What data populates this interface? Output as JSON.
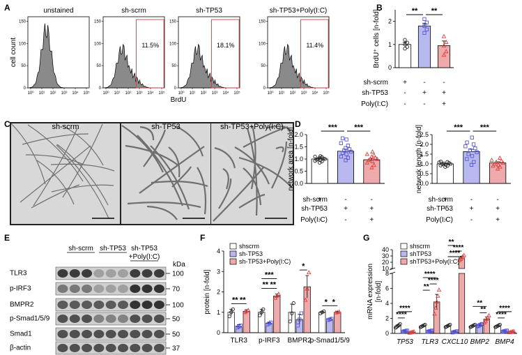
{
  "panel_letters": {
    "A": "A",
    "B": "B",
    "C": "C",
    "D": "D",
    "E": "E",
    "F": "F",
    "G": "G"
  },
  "panel_a": {
    "x_axis_label": "BrdU",
    "y_axis_label": "cell count",
    "x_ticks": [
      "10⁰",
      "10¹",
      "10²",
      "10³",
      "10⁴",
      "10⁵"
    ],
    "y_ticks": [
      "0",
      "50",
      "100",
      "150"
    ],
    "histograms": [
      {
        "title": "unstained",
        "gate": ""
      },
      {
        "title": "sh-scrm",
        "gate": "11.5%"
      },
      {
        "title": "sh-TP53",
        "gate": "18.1%"
      },
      {
        "title": "sh-TP53+Poly(I:C)",
        "gate": "11.4%"
      }
    ]
  },
  "condition_table": {
    "rows": [
      {
        "label": "sh-scrm",
        "marks": [
          "+",
          "-",
          "-"
        ]
      },
      {
        "label": "sh-TP53",
        "marks": [
          "-",
          "+",
          "+"
        ]
      },
      {
        "label": "Poly(I:C)",
        "marks": [
          "-",
          "-",
          "+"
        ]
      }
    ]
  },
  "panel_c": {
    "titles": [
      "sh-scrm",
      "sh-TP53",
      "sh-TP53+Poly(I:C)"
    ]
  },
  "panel_e": {
    "groups": [
      "sh-scrm",
      "sh-TP53",
      "sh-TP53\n+Poly(I:C)"
    ],
    "group_line1": [
      "sh-scrm",
      "sh-TP53",
      "sh-TP53"
    ],
    "group_line2": [
      "",
      "",
      "+Poly(I:C)"
    ],
    "kda_label": "kDa",
    "bands": [
      {
        "name": "TLR3",
        "kda": "100"
      },
      {
        "name": "p-IRF3",
        "kda": "70"
      },
      {
        "name": "BMPR2",
        "kda": "100"
      },
      {
        "name": "p-Smad1/5/9",
        "kda": "50"
      },
      {
        "name": "Smad1",
        "kda": "50"
      },
      {
        "name": "β-actin",
        "kda": "37"
      }
    ]
  },
  "colors": {
    "scrm": "#ffffff",
    "tp53": "#b9b8ee",
    "polyic": "#eeaaaa",
    "tp53_marker": "#5555dd",
    "polyic_marker": "#dd4444"
  },
  "chart_data": [
    {
      "panel": "B",
      "type": "bar",
      "ylabel": "BrdU⁺ cells [n-fold]",
      "ylim": [
        0,
        2.5
      ],
      "yticks": [
        "0",
        "1",
        "2"
      ],
      "ytick_values": [
        0,
        1,
        2
      ],
      "categories": [
        "sh-scrm",
        "sh-TP53",
        "sh-TP53+Poly(I:C)"
      ],
      "values": [
        1.0,
        1.8,
        0.95
      ],
      "errors": [
        0.1,
        0.12,
        0.2
      ],
      "points": [
        [
          0.82,
          0.9,
          1.0,
          1.08,
          1.2
        ],
        [
          1.5,
          1.65,
          1.8,
          1.95,
          2.1
        ],
        [
          0.55,
          0.7,
          0.95,
          1.1,
          1.35
        ]
      ],
      "significance": [
        {
          "from": 0,
          "to": 1,
          "label": "**"
        },
        {
          "from": 1,
          "to": 2,
          "label": "**"
        }
      ]
    },
    {
      "panel": "D-left",
      "type": "bar",
      "ylabel": "network area [n-fold]",
      "ylim": [
        0,
        2.0
      ],
      "yticks": [
        "0.0",
        "0.5",
        "1.0",
        "1.5",
        "2.0"
      ],
      "ytick_values": [
        0,
        0.5,
        1,
        1.5,
        2
      ],
      "categories": [
        "sh-scrm",
        "sh-TP53",
        "sh-TP53+Poly(I:C)"
      ],
      "values": [
        1.0,
        1.32,
        0.97
      ],
      "errors": [
        0.03,
        0.08,
        0.06
      ],
      "points": [
        [
          0.85,
          0.9,
          0.92,
          0.95,
          0.97,
          1.0,
          1.0,
          1.02,
          1.05,
          1.08,
          1.1,
          1.12
        ],
        [
          0.95,
          1.05,
          1.1,
          1.2,
          1.25,
          1.3,
          1.35,
          1.4,
          1.45,
          1.55,
          1.65,
          1.8,
          1.85
        ],
        [
          0.65,
          0.75,
          0.85,
          0.9,
          0.95,
          1.0,
          1.0,
          1.05,
          1.1,
          1.15,
          1.2,
          1.3
        ]
      ],
      "significance": [
        {
          "from": 0,
          "to": 1,
          "label": "***"
        },
        {
          "from": 1,
          "to": 2,
          "label": "***"
        }
      ]
    },
    {
      "panel": "D-right",
      "type": "bar",
      "ylabel": "network length [n-fold]",
      "ylim": [
        0,
        2.5
      ],
      "yticks": [
        "0.0",
        "0.5",
        "1.0",
        "1.5",
        "2.0",
        "2.5"
      ],
      "ytick_values": [
        0,
        0.5,
        1,
        1.5,
        2,
        2.5
      ],
      "categories": [
        "sh-scrm",
        "sh-TP53",
        "sh-TP53+Poly(I:C)"
      ],
      "values": [
        1.0,
        1.63,
        1.05
      ],
      "errors": [
        0.03,
        0.12,
        0.06
      ],
      "points": [
        [
          0.85,
          0.9,
          0.92,
          0.95,
          0.98,
          1.0,
          1.02,
          1.05,
          1.08,
          1.1,
          1.12
        ],
        [
          0.95,
          1.1,
          1.25,
          1.4,
          1.5,
          1.6,
          1.7,
          1.8,
          1.9,
          2.0,
          2.1,
          2.35
        ],
        [
          0.75,
          0.85,
          0.9,
          0.95,
          1.0,
          1.05,
          1.1,
          1.15,
          1.2,
          1.3
        ]
      ],
      "significance": [
        {
          "from": 0,
          "to": 1,
          "label": "***"
        },
        {
          "from": 1,
          "to": 2,
          "label": "***"
        }
      ]
    },
    {
      "panel": "F",
      "type": "bar",
      "ylabel": "protein [n-fold]",
      "ylim": [
        0,
        4
      ],
      "yticks": [
        "0",
        "1",
        "2",
        "3",
        "4"
      ],
      "ytick_values": [
        0,
        1,
        2,
        3,
        4
      ],
      "legend": [
        "shscrm",
        "sh-TP53",
        "sh-TP53+Poly(I:C)"
      ],
      "categories": [
        "TLR3",
        "p-IRF3",
        "BMPR2",
        "p-Smad1/5/9"
      ],
      "series": [
        {
          "name": "shscrm",
          "values": [
            1.0,
            1.0,
            1.0,
            1.0
          ],
          "errors": [
            0.15,
            0.15,
            0.4,
            0.05
          ]
        },
        {
          "name": "sh-TP53",
          "values": [
            0.3,
            0.45,
            0.65,
            0.65
          ],
          "errors": [
            0.1,
            0.05,
            0.25,
            0.05
          ]
        },
        {
          "name": "sh-TP53+Poly(I:C)",
          "values": [
            1.05,
            1.8,
            2.25,
            1.0
          ],
          "errors": [
            0.08,
            0.1,
            0.55,
            0.05
          ]
        }
      ],
      "points": [
        [
          [
            0.8,
            1.0,
            1.15
          ],
          [
            0.25,
            0.3,
            0.35
          ],
          [
            1.0,
            1.05,
            1.1
          ]
        ],
        [
          [
            0.85,
            1.0,
            1.15
          ],
          [
            0.4,
            0.45,
            0.5
          ],
          [
            1.7,
            1.8,
            1.9
          ]
        ],
        [
          [
            0.55,
            0.95,
            1.45
          ],
          [
            0.35,
            0.65,
            0.95
          ],
          [
            1.6,
            2.15,
            2.95
          ]
        ],
        [
          [
            0.95,
            1.0,
            1.05
          ],
          [
            0.62,
            0.65,
            0.68
          ],
          [
            0.98,
            1.0,
            1.02
          ]
        ]
      ],
      "significance": [
        {
          "cat": 0,
          "from": 0,
          "to": 1,
          "label": "**"
        },
        {
          "cat": 0,
          "from": 1,
          "to": 2,
          "label": "**"
        },
        {
          "cat": 1,
          "from": 0,
          "to": 1,
          "label": "**"
        },
        {
          "cat": 1,
          "from": 1,
          "to": 2,
          "label": "**"
        },
        {
          "cat": 1,
          "from": 0,
          "to": 2,
          "label": "***"
        },
        {
          "cat": 2,
          "from": 1,
          "to": 2,
          "label": "*"
        },
        {
          "cat": 3,
          "from": 0,
          "to": 1,
          "label": "*"
        },
        {
          "cat": 3,
          "from": 1,
          "to": 2,
          "label": "*"
        }
      ]
    },
    {
      "panel": "G",
      "type": "bar",
      "ylabel": "mRNA expression [n-fold]",
      "ylabel_line1": "mRNA expression",
      "ylabel_line2": "[n-fold]",
      "axis_break": true,
      "ylim_lower": [
        0,
        8
      ],
      "ylim_upper": [
        10,
        40
      ],
      "yticks_lower": [
        "0",
        "2",
        "4",
        "6",
        "8"
      ],
      "ytick_values_lower": [
        0,
        2,
        4,
        6,
        8
      ],
      "yticks_upper": [
        "10",
        "20",
        "30",
        "40"
      ],
      "ytick_values_upper": [
        10,
        20,
        30,
        40
      ],
      "legend": [
        "shscrm",
        "shTP53",
        "shTP53+Poly(I:C)"
      ],
      "categories": [
        "TP53",
        "TLR3",
        "CXCL10",
        "BMP2",
        "BMP4"
      ],
      "series": [
        {
          "name": "shscrm",
          "values": [
            1.0,
            1.0,
            1.0,
            1.0,
            1.0
          ],
          "errors": [
            0.15,
            0.1,
            0.1,
            0.1,
            0.1
          ]
        },
        {
          "name": "shTP53",
          "values": [
            0.3,
            0.3,
            0.2,
            1.1,
            0.3
          ],
          "errors": [
            0.05,
            0.05,
            0.05,
            0.1,
            0.05
          ]
        },
        {
          "name": "shTP53+Poly(I:C)",
          "values": [
            0.15,
            4.2,
            27.0,
            1.9,
            0.2
          ],
          "errors": [
            0.05,
            1.0,
            2.5,
            0.3,
            0.05
          ]
        }
      ],
      "significance": [
        {
          "cat": 0,
          "from": 0,
          "to": 1,
          "label": "****"
        },
        {
          "cat": 0,
          "from": 0,
          "to": 2,
          "label": "****"
        },
        {
          "cat": 1,
          "from": 0,
          "to": 1,
          "label": "**"
        },
        {
          "cat": 1,
          "from": 1,
          "to": 2,
          "label": "****"
        },
        {
          "cat": 1,
          "from": 0,
          "to": 2,
          "label": "****"
        },
        {
          "cat": 2,
          "from": 0,
          "to": 1,
          "label": "**"
        },
        {
          "cat": 2,
          "from": 1,
          "to": 2,
          "label": "****"
        },
        {
          "cat": 2,
          "from": 0,
          "to": 2,
          "label": "****"
        },
        {
          "cat": 3,
          "from": 1,
          "to": 2,
          "label": "**"
        },
        {
          "cat": 3,
          "from": 0,
          "to": 2,
          "label": "**"
        },
        {
          "cat": 4,
          "from": 0,
          "to": 1,
          "label": "****"
        },
        {
          "cat": 4,
          "from": 0,
          "to": 2,
          "label": "****"
        }
      ]
    }
  ]
}
